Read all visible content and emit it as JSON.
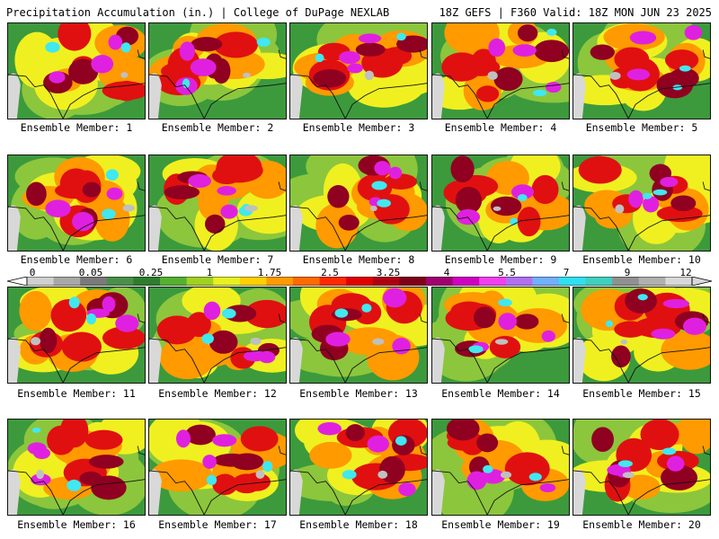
{
  "header": {
    "title": "Precipitation Accumulation (in.) | College of DuPage NEXLAB",
    "run_info": "18Z GEFS | F360 Valid: 18Z MON JUN 23 2025"
  },
  "members": [
    {
      "label": "Ensemble Member: 1"
    },
    {
      "label": "Ensemble Member: 2"
    },
    {
      "label": "Ensemble Member: 3"
    },
    {
      "label": "Ensemble Member: 4"
    },
    {
      "label": "Ensemble Member: 5"
    },
    {
      "label": "Ensemble Member: 6"
    },
    {
      "label": "Ensemble Member: 7"
    },
    {
      "label": "Ensemble Member: 8"
    },
    {
      "label": "Ensemble Member: 9"
    },
    {
      "label": "Ensemble Member: 10"
    },
    {
      "label": "Ensemble Member: 11"
    },
    {
      "label": "Ensemble Member: 12"
    },
    {
      "label": "Ensemble Member: 13"
    },
    {
      "label": "Ensemble Member: 14"
    },
    {
      "label": "Ensemble Member: 15"
    },
    {
      "label": "Ensemble Member: 16"
    },
    {
      "label": "Ensemble Member: 17"
    },
    {
      "label": "Ensemble Member: 18"
    },
    {
      "label": "Ensemble Member: 19"
    },
    {
      "label": "Ensemble Member: 20"
    }
  ],
  "colorbar": {
    "tick_labels": [
      "0",
      "0.05",
      "0.25",
      "1",
      "1.75",
      "2.5",
      "3.25",
      "4",
      "5.5",
      "7",
      "9",
      "12"
    ],
    "colors": [
      "#d0d0d0",
      "#a8a8a8",
      "#7a7a7a",
      "#4a8f4a",
      "#2e7d2e",
      "#55b030",
      "#a0d020",
      "#e8f020",
      "#ffd000",
      "#ff9a00",
      "#ff6a00",
      "#ff2a00",
      "#e00000",
      "#b00010",
      "#80001a",
      "#a00070",
      "#d000c0",
      "#f040f0",
      "#b070f0",
      "#70b0ff",
      "#30e0f0",
      "#40d0c0",
      "#909090",
      "#b0b0b0",
      "#d8d8d8"
    ]
  },
  "field_colors": {
    "gray": "#c0c0c0",
    "green": "#3c9a3c",
    "lightgreen": "#8cc63c",
    "yellow": "#f0f020",
    "orange": "#ff9a00",
    "red": "#e01010",
    "darkred": "#900020",
    "magenta": "#e020e0",
    "cyan": "#40e8f0",
    "lightgray": "#d8d8d8"
  }
}
